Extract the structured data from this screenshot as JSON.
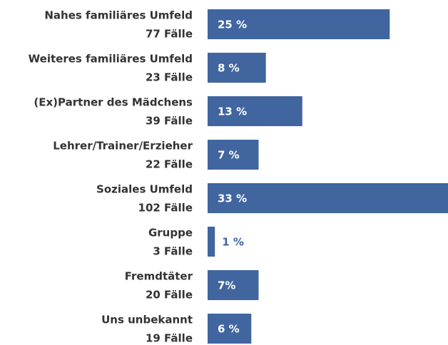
{
  "chart_data": {
    "type": "bar",
    "orientation": "horizontal",
    "categories": [
      "Nahes familiäres Umfeld",
      "Weiteres familiäres Umfeld",
      "(Ex)Partner des Mädchens",
      "Lehrer/Trainer/Erzieher",
      "Soziales Umfeld",
      "Gruppe",
      "Fremdtäter",
      "Uns unbekannt"
    ],
    "sublabels": [
      "77 Fälle",
      "23 Fälle",
      "39 Fälle",
      "22 Fälle",
      "102 Fälle",
      "3 Fälle",
      "20 Fälle",
      "19 Fälle"
    ],
    "values": [
      25,
      8,
      13,
      7,
      33,
      1,
      7,
      6
    ],
    "value_labels": [
      "25 %",
      "8 %",
      "13 %",
      "7 %",
      "33 %",
      "1 %",
      "7%",
      "6 %"
    ],
    "color": "#40659f",
    "xlim": [
      0,
      33
    ]
  }
}
